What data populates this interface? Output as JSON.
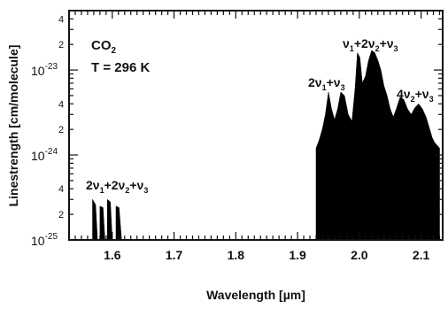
{
  "chart_data": {
    "type": "area",
    "title": "",
    "xlabel": "Wavelength [µm]",
    "ylabel": "Linestrength [cm/molecule]",
    "xlim": [
      1.53,
      2.135
    ],
    "ylim": [
      1e-25,
      5e-23
    ],
    "y_scale": "log",
    "x_ticks": [
      1.6,
      1.7,
      1.8,
      1.9,
      2.0,
      2.1
    ],
    "x_tick_labels": [
      "1.6",
      "1.7",
      "1.8",
      "1.9",
      "2.0",
      "2.1"
    ],
    "y_major_ticks": [
      {
        "value": 1e-25,
        "base": "10",
        "exp": "-25"
      },
      {
        "value": 1e-24,
        "base": "10",
        "exp": "-24"
      },
      {
        "value": 1e-23,
        "base": "10",
        "exp": "-23"
      }
    ],
    "y_minor_labels": [
      {
        "value": 2e-25,
        "label": "2"
      },
      {
        "value": 4e-25,
        "label": "4"
      },
      {
        "value": 2e-24,
        "label": "2"
      },
      {
        "value": 4e-24,
        "label": "4"
      },
      {
        "value": 2e-23,
        "label": "2"
      },
      {
        "value": 4e-23,
        "label": "4"
      }
    ],
    "annotations": {
      "molecule": "CO",
      "molecule_sub": "2",
      "temperature": "T = 296 K"
    },
    "bands": [
      {
        "label": "2ν1+2ν2+ν3",
        "envelope": [
          [
            1.568,
            1e-25
          ],
          [
            1.568,
            3e-25
          ],
          [
            1.573,
            2.6e-25
          ],
          [
            1.576,
            1e-25
          ],
          [
            1.58,
            1e-25
          ],
          [
            1.58,
            2.5e-25
          ],
          [
            1.585,
            2.4e-25
          ],
          [
            1.588,
            1e-25
          ],
          [
            1.592,
            1e-25
          ],
          [
            1.592,
            3e-25
          ],
          [
            1.597,
            2.8e-25
          ],
          [
            1.6,
            1e-25
          ],
          [
            1.606,
            1e-25
          ],
          [
            1.606,
            2.5e-25
          ],
          [
            1.611,
            2.4e-25
          ],
          [
            1.615,
            1e-25
          ]
        ]
      },
      {
        "label": "2ν1+ν3",
        "envelope": [
          [
            1.93,
            1e-25
          ],
          [
            1.93,
            1.2e-24
          ],
          [
            1.935,
            1.5e-24
          ],
          [
            1.94,
            2e-24
          ],
          [
            1.945,
            3e-24
          ],
          [
            1.95,
            5.5e-24
          ],
          [
            1.955,
            3.5e-24
          ],
          [
            1.96,
            2.6e-24
          ],
          [
            1.965,
            3.5e-24
          ],
          [
            1.97,
            5.5e-24
          ],
          [
            1.976,
            5e-24
          ],
          [
            1.982,
            3e-24
          ],
          [
            1.988,
            2.5e-24
          ]
        ]
      },
      {
        "label": "ν1+2ν2+ν3",
        "envelope": [
          [
            1.988,
            2.5e-24
          ],
          [
            1.993,
            6e-24
          ],
          [
            1.997,
            1.6e-23
          ],
          [
            2.001,
            1.4e-23
          ],
          [
            2.005,
            7e-24
          ],
          [
            2.01,
            8.5e-24
          ],
          [
            2.015,
            1.3e-23
          ],
          [
            2.02,
            1.7e-23
          ],
          [
            2.025,
            1.6e-23
          ],
          [
            2.03,
            1.3e-23
          ],
          [
            2.035,
            1e-23
          ],
          [
            2.04,
            6.5e-24
          ],
          [
            2.045,
            5e-24
          ],
          [
            2.05,
            3.5e-24
          ],
          [
            2.055,
            2.8e-24
          ]
        ]
      },
      {
        "label": "4ν2+ν3",
        "envelope": [
          [
            2.055,
            2.8e-24
          ],
          [
            2.06,
            3.5e-24
          ],
          [
            2.066,
            4.8e-24
          ],
          [
            2.072,
            4.5e-24
          ],
          [
            2.078,
            3.5e-24
          ],
          [
            2.084,
            3e-24
          ],
          [
            2.09,
            3.6e-24
          ],
          [
            2.096,
            4e-24
          ],
          [
            2.102,
            3.5e-24
          ],
          [
            2.108,
            2.8e-24
          ],
          [
            2.114,
            2e-24
          ],
          [
            2.118,
            1.6e-24
          ],
          [
            2.122,
            1.4e-24
          ],
          [
            2.126,
            1.3e-24
          ],
          [
            2.13,
            1.2e-24
          ],
          [
            2.13,
            1e-25
          ]
        ]
      }
    ],
    "grid": false,
    "legend": "none"
  }
}
